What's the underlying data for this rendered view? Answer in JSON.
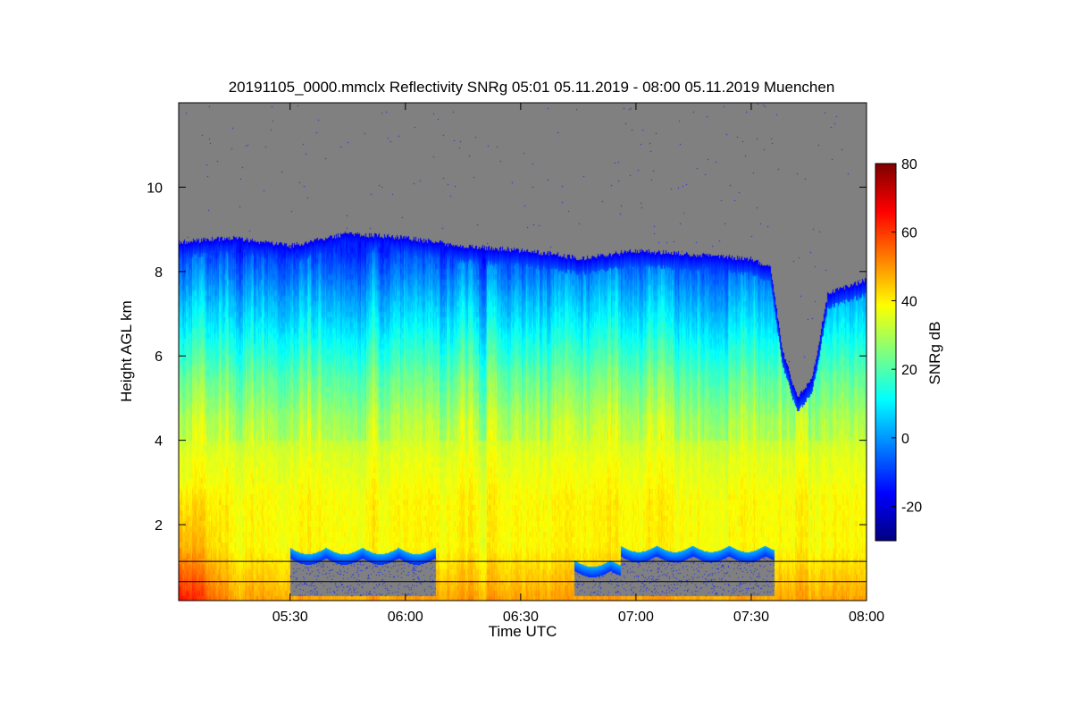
{
  "chart_data": {
    "type": "heatmap",
    "title": "20191105_0000.mmclx Reflectivity SNRg   05:01 05.11.2019 - 08:00 05.11.2019 Muenchen",
    "xlabel": "Time UTC",
    "ylabel": "Height AGL km",
    "colorbar_label": "SNRg dB",
    "x_range_minutes": [
      301,
      480
    ],
    "xticks": [
      {
        "v": 330,
        "label": "05:30"
      },
      {
        "v": 360,
        "label": "06:00"
      },
      {
        "v": 390,
        "label": "06:30"
      },
      {
        "v": 420,
        "label": "07:00"
      },
      {
        "v": 450,
        "label": "07:30"
      },
      {
        "v": 480,
        "label": "08:00"
      }
    ],
    "ylim": [
      0.2,
      12
    ],
    "yticks": [
      2,
      4,
      6,
      8,
      10
    ],
    "clim": [
      -30,
      80
    ],
    "cticks": [
      -20,
      0,
      20,
      40,
      60,
      80
    ],
    "colormap": "jet",
    "no_signal_color": "#808080",
    "cloud_top_km": {
      "time_min": [
        301,
        315,
        330,
        345,
        360,
        375,
        390,
        400,
        405,
        420,
        435,
        450,
        455,
        458,
        462,
        466,
        470,
        480
      ],
      "height": [
        8.7,
        8.8,
        8.6,
        8.9,
        8.8,
        8.6,
        8.5,
        8.4,
        8.3,
        8.5,
        8.4,
        8.3,
        8.1,
        6.2,
        5.0,
        5.5,
        7.5,
        7.8
      ]
    },
    "snr_profile_db": {
      "height_km": [
        0.2,
        0.8,
        1.5,
        2.5,
        3.5,
        4.5,
        5.5,
        6.5,
        7.5,
        8.5
      ],
      "snr": [
        50,
        45,
        40,
        40,
        37,
        32,
        24,
        14,
        4,
        -8
      ]
    },
    "low_level_gaps": [
      {
        "start": 330,
        "end": 368,
        "top_km": 1.2
      },
      {
        "start": 404,
        "end": 416,
        "top_km": 0.9
      },
      {
        "start": 416,
        "end": 456,
        "top_km": 1.25
      }
    ],
    "reference_lines_km": [
      1.13,
      0.65
    ]
  }
}
